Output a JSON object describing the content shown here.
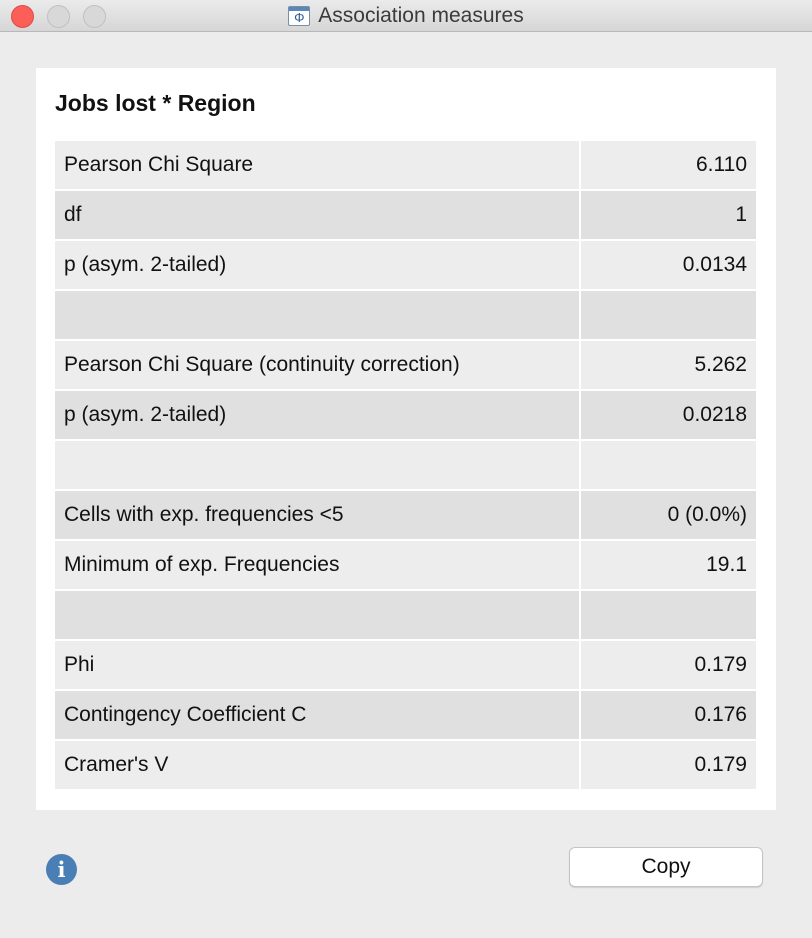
{
  "window": {
    "title": "Association measures",
    "app_icon": "phi-icon",
    "app_icon_glyph": "Φ"
  },
  "table": {
    "title": "Jobs lost * Region",
    "rows": [
      {
        "label": "Pearson Chi Square",
        "value": "6.110"
      },
      {
        "label": "df",
        "value": "1"
      },
      {
        "label": "p (asym. 2-tailed)",
        "value": "0.0134"
      },
      {
        "label": "",
        "value": ""
      },
      {
        "label": "Pearson Chi Square (continuity correction)",
        "value": "5.262"
      },
      {
        "label": "p (asym. 2-tailed)",
        "value": "0.0218"
      },
      {
        "label": "",
        "value": ""
      },
      {
        "label": "Cells with exp. frequencies <5",
        "value": "0 (0.0%)"
      },
      {
        "label": "Minimum of exp. Frequencies",
        "value": "19.1"
      },
      {
        "label": "",
        "value": ""
      },
      {
        "label": "Phi",
        "value": "0.179"
      },
      {
        "label": "Contingency Coefficient C",
        "value": "0.176"
      },
      {
        "label": "Cramer's V",
        "value": "0.179"
      }
    ]
  },
  "footer": {
    "info_icon": "info-icon",
    "info_glyph": "i",
    "copy_label": "Copy"
  },
  "colors": {
    "close": "#fc5f57",
    "info": "#4a7fb5",
    "row_light": "#ededed",
    "row_dark": "#e0e0e0"
  }
}
